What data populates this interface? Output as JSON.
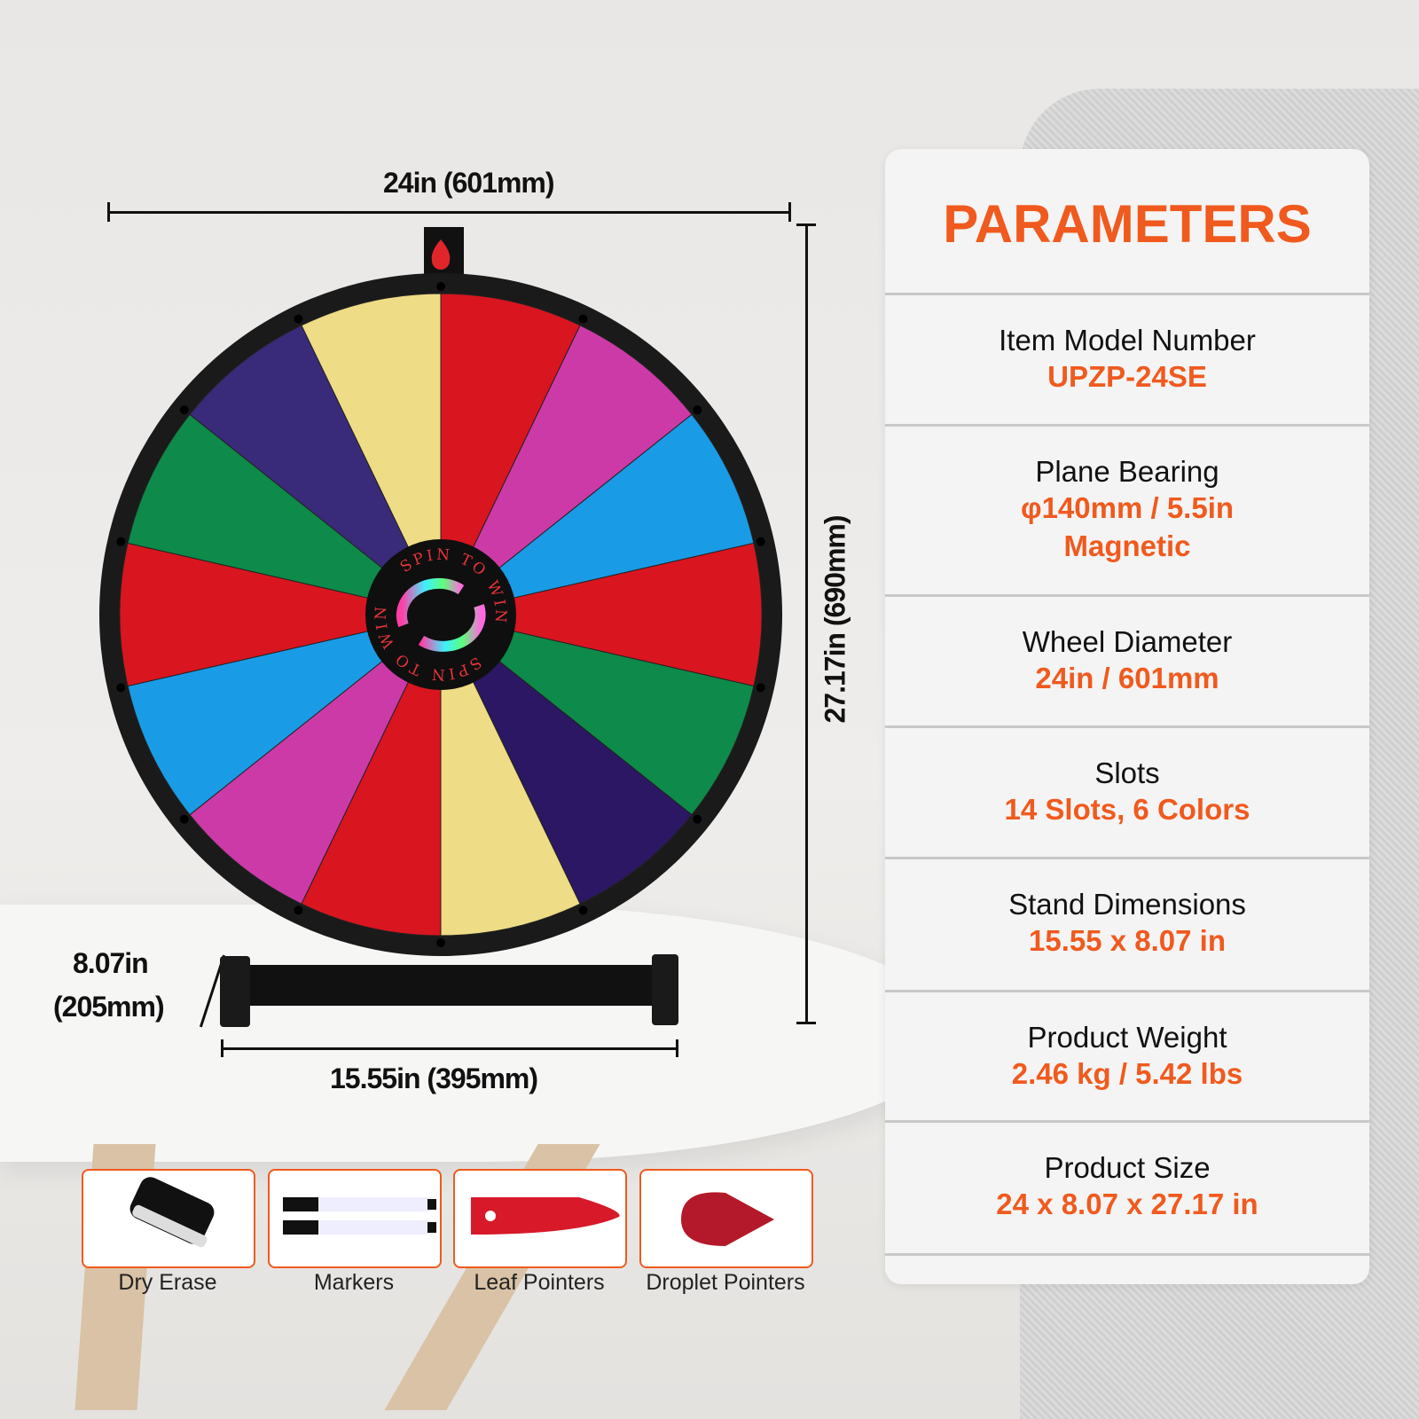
{
  "dimensions": {
    "width": "24in (601mm)",
    "height": "27.17in (690mm)",
    "stand_depth_in": "8.07in",
    "stand_depth_mm": "(205mm)",
    "stand_width": "15.55in (395mm)"
  },
  "wheel": {
    "hub_text_top": "SPIN TO WIN",
    "hub_text_bottom": "SPIN TO WIN",
    "slot_colors": [
      "#d9151f",
      "#cc3aa8",
      "#1a9be6",
      "#d9151f",
      "#0e8a4a",
      "#2b1763",
      "#eedc86",
      "#d9151f",
      "#cc3aa8",
      "#1a9be6",
      "#d9151f",
      "#0e8a4a",
      "#3a2a7a",
      "#eedc86"
    ]
  },
  "parameters": {
    "title": "PARAMETERS",
    "rows": [
      {
        "label": "Item Model Number",
        "values": [
          "UPZP-24SE"
        ]
      },
      {
        "label": "Plane Bearing",
        "values": [
          "φ140mm / 5.5in",
          "Magnetic"
        ]
      },
      {
        "label": "Wheel Diameter",
        "values": [
          "24in / 601mm"
        ]
      },
      {
        "label": "Slots",
        "values": [
          "14 Slots, 6 Colors"
        ]
      },
      {
        "label": "Stand Dimensions",
        "values": [
          "15.55 x 8.07 in"
        ]
      },
      {
        "label": "Product Weight",
        "values": [
          "2.46 kg / 5.42 lbs"
        ]
      },
      {
        "label": "Product Size",
        "values": [
          "24 x 8.07 x 27.17 in"
        ]
      }
    ]
  },
  "accessories": [
    {
      "label": "Dry Erase",
      "icon": "eraser-icon"
    },
    {
      "label": "Markers",
      "icon": "markers-icon"
    },
    {
      "label": "Leaf Pointers",
      "icon": "leaf-pointer-icon"
    },
    {
      "label": "Droplet Pointers",
      "icon": "droplet-pointer-icon"
    }
  ],
  "colors": {
    "accent": "#f05a1e"
  }
}
